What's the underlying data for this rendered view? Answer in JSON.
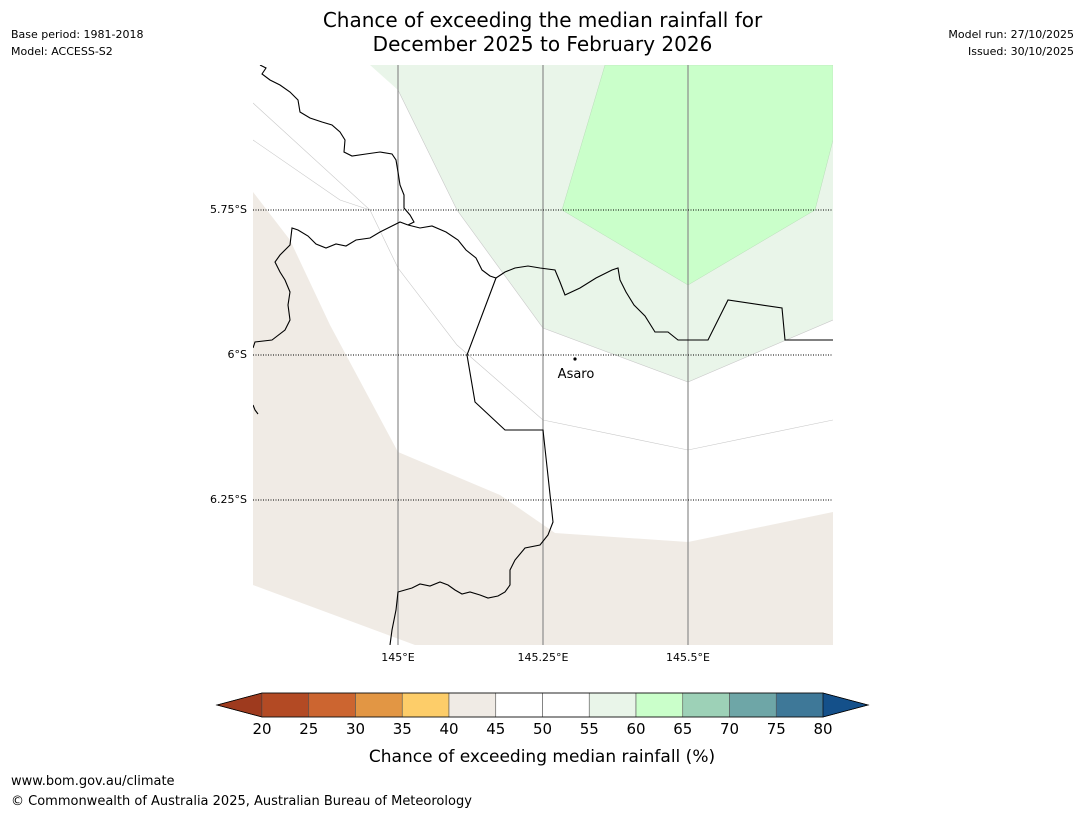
{
  "header": {
    "title_line1": "Chance of exceeding the median rainfall for",
    "title_line2": "December 2025 to February 2026",
    "base_period": "Base period: 1981-2018",
    "model": "Model: ACCESS-S2",
    "model_run": "Model run: 27/10/2025",
    "issued": "Issued: 30/10/2025"
  },
  "map": {
    "lat_labels": [
      "5.75°S",
      "6°S",
      "6.25°S"
    ],
    "lon_labels": [
      "145°E",
      "145.25°E",
      "145.5°E"
    ],
    "place": "Asaro",
    "colors": {
      "land_dry": "#f0ebe5",
      "wet_light": "#e9f5e9",
      "wet_medium": "#caffca",
      "boundary": "#000000",
      "meridian": "#8c8c8c"
    }
  },
  "colorbar": {
    "ticks": [
      "20",
      "25",
      "30",
      "35",
      "40",
      "45",
      "50",
      "55",
      "60",
      "65",
      "70",
      "75",
      "80"
    ],
    "colors": [
      "#9e3a1e",
      "#b34a24",
      "#cc6530",
      "#e29644",
      "#fdcd69",
      "#f0ebe5",
      "#ffffff",
      "#ffffff",
      "#e9f5e9",
      "#caffca",
      "#9dd1b7",
      "#6ea6a7",
      "#3e7898",
      "#14508a"
    ],
    "label": "Chance of exceeding median rainfall (%)"
  },
  "footer": {
    "url": "www.bom.gov.au/climate",
    "copyright": "© Commonwealth of Australia 2025, Australian Bureau of Meteorology"
  }
}
